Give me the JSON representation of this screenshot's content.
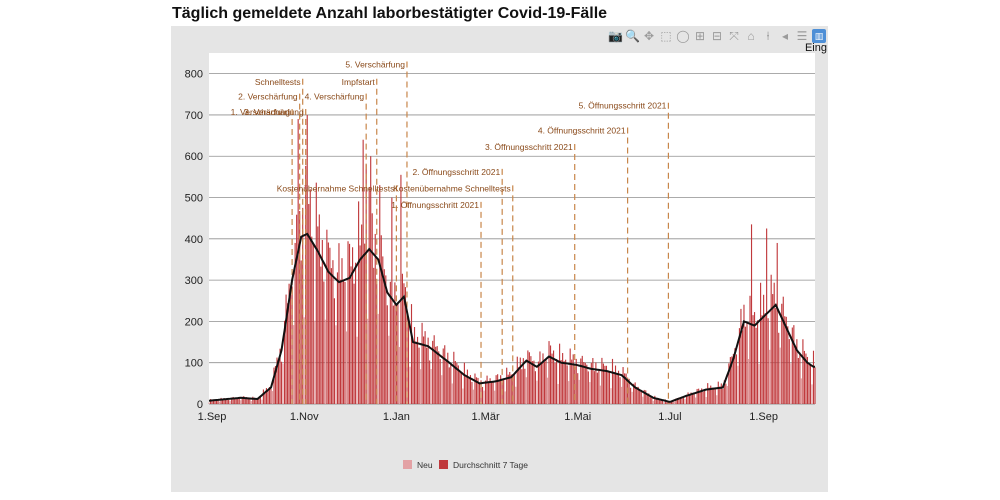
{
  "title": "Täglich gemeldete Anzahl laborbestätigter Covid-19-Fälle",
  "modebar": {
    "icons": [
      "camera-icon",
      "zoom-icon",
      "pan-icon",
      "box-select-icon",
      "lasso-icon",
      "zoom-in-icon",
      "zoom-out-icon",
      "autoscale-icon",
      "home-icon",
      "spike-lines-icon",
      "hover-closest-icon",
      "hover-compare-icon",
      "chart-icon"
    ],
    "overflow_label": "Eing"
  },
  "chart_data": {
    "type": "bar",
    "title": "Täglich gemeldete Anzahl laborbestätigter Covid-19-Fälle",
    "xlabel": "",
    "ylabel": "",
    "ylim": [
      0,
      850
    ],
    "yticks": [
      0,
      100,
      200,
      300,
      400,
      500,
      600,
      700,
      800
    ],
    "x_range": [
      "2020-08-30",
      "2021-10-05"
    ],
    "xticks": [
      {
        "date": "2020-09-01",
        "label": "1.Sep"
      },
      {
        "date": "2020-11-01",
        "label": "1.Nov"
      },
      {
        "date": "2021-01-01",
        "label": "1.Jan"
      },
      {
        "date": "2021-03-01",
        "label": "1.Mär"
      },
      {
        "date": "2021-05-01",
        "label": "1.Mai"
      },
      {
        "date": "2021-07-01",
        "label": "1.Jul"
      },
      {
        "date": "2021-09-01",
        "label": "1.Sep"
      }
    ],
    "grid": true,
    "legend_position": "bottom-center",
    "colors": {
      "bars": "#c0393c",
      "bars_light": "#e3a1a4",
      "line": "#111111",
      "vline": "#c8864a",
      "annotation": "#8a4a1a"
    },
    "series": [
      {
        "name": "Neu",
        "kind": "bar"
      },
      {
        "name": "Durchschnitt 7 Tage",
        "kind": "line"
      }
    ],
    "trend_anchors": [
      {
        "date": "2020-08-30",
        "value": 8
      },
      {
        "date": "2020-09-20",
        "value": 15
      },
      {
        "date": "2020-10-01",
        "value": 12
      },
      {
        "date": "2020-10-10",
        "value": 40
      },
      {
        "date": "2020-10-17",
        "value": 130
      },
      {
        "date": "2020-10-24",
        "value": 300
      },
      {
        "date": "2020-10-30",
        "value": 405
      },
      {
        "date": "2020-11-03",
        "value": 412
      },
      {
        "date": "2020-11-10",
        "value": 370
      },
      {
        "date": "2020-11-17",
        "value": 320
      },
      {
        "date": "2020-11-24",
        "value": 295
      },
      {
        "date": "2020-12-01",
        "value": 305
      },
      {
        "date": "2020-12-08",
        "value": 350
      },
      {
        "date": "2020-12-14",
        "value": 375
      },
      {
        "date": "2020-12-20",
        "value": 350
      },
      {
        "date": "2020-12-26",
        "value": 270
      },
      {
        "date": "2021-01-01",
        "value": 240
      },
      {
        "date": "2021-01-06",
        "value": 260
      },
      {
        "date": "2021-01-12",
        "value": 150
      },
      {
        "date": "2021-01-22",
        "value": 140
      },
      {
        "date": "2021-02-05",
        "value": 100
      },
      {
        "date": "2021-02-15",
        "value": 70
      },
      {
        "date": "2021-02-25",
        "value": 50
      },
      {
        "date": "2021-03-08",
        "value": 55
      },
      {
        "date": "2021-03-18",
        "value": 65
      },
      {
        "date": "2021-03-28",
        "value": 105
      },
      {
        "date": "2021-04-04",
        "value": 90
      },
      {
        "date": "2021-04-12",
        "value": 115
      },
      {
        "date": "2021-04-20",
        "value": 100
      },
      {
        "date": "2021-04-30",
        "value": 95
      },
      {
        "date": "2021-05-10",
        "value": 85
      },
      {
        "date": "2021-05-20",
        "value": 80
      },
      {
        "date": "2021-05-30",
        "value": 70
      },
      {
        "date": "2021-06-08",
        "value": 40
      },
      {
        "date": "2021-06-20",
        "value": 15
      },
      {
        "date": "2021-07-01",
        "value": 5
      },
      {
        "date": "2021-07-12",
        "value": 20
      },
      {
        "date": "2021-07-25",
        "value": 35
      },
      {
        "date": "2021-08-05",
        "value": 40
      },
      {
        "date": "2021-08-12",
        "value": 110
      },
      {
        "date": "2021-08-19",
        "value": 200
      },
      {
        "date": "2021-08-26",
        "value": 190
      },
      {
        "date": "2021-09-02",
        "value": 215
      },
      {
        "date": "2021-09-09",
        "value": 240
      },
      {
        "date": "2021-09-16",
        "value": 185
      },
      {
        "date": "2021-09-23",
        "value": 130
      },
      {
        "date": "2021-09-30",
        "value": 100
      },
      {
        "date": "2021-10-04",
        "value": 90
      }
    ],
    "bar_peaks": [
      {
        "date": "2020-10-26",
        "value": 390
      },
      {
        "date": "2020-10-28",
        "value": 690
      },
      {
        "date": "2020-10-31",
        "value": 475
      },
      {
        "date": "2020-11-03",
        "value": 700
      },
      {
        "date": "2020-11-05",
        "value": 520
      },
      {
        "date": "2020-11-10",
        "value": 430
      },
      {
        "date": "2020-12-10",
        "value": 640
      },
      {
        "date": "2020-12-12",
        "value": 580
      },
      {
        "date": "2020-12-15",
        "value": 600
      },
      {
        "date": "2020-12-21",
        "value": 530
      },
      {
        "date": "2020-12-29",
        "value": 500
      },
      {
        "date": "2021-01-04",
        "value": 555
      },
      {
        "date": "2021-08-24",
        "value": 435
      },
      {
        "date": "2021-09-03",
        "value": 425
      },
      {
        "date": "2021-09-10",
        "value": 390
      }
    ],
    "vlines": [
      {
        "date": "2020-10-24",
        "label": "1. Verschärfung",
        "y": 700
      },
      {
        "date": "2020-10-29",
        "label": "2. Verschärfung",
        "y": 737
      },
      {
        "date": "2020-10-31",
        "label": "Schnelltests",
        "y": 773
      },
      {
        "date": "2020-11-02",
        "label": "3. Verschärfung",
        "y": 700
      },
      {
        "date": "2020-12-12",
        "label": "4. Verschärfung",
        "y": 737
      },
      {
        "date": "2020-12-19",
        "label": "Impfstart",
        "y": 773
      },
      {
        "date": "2021-01-01",
        "label": "Kostenübernahme Schnelltests",
        "y": 515
      },
      {
        "date": "2021-01-08",
        "label": "5. Verschärfung",
        "y": 815
      },
      {
        "date": "2021-02-26",
        "label": "1. Öffnungsschritt 2021",
        "y": 475
      },
      {
        "date": "2021-03-12",
        "label": "2. Öffnungsschritt 2021",
        "y": 555
      },
      {
        "date": "2021-03-19",
        "label": "Kostenübernahme Schnelltests",
        "y": 515
      },
      {
        "date": "2021-04-29",
        "label": "3. Öffnungsschritt 2021",
        "y": 615
      },
      {
        "date": "2021-06-03",
        "label": "4. Öffnungsschritt 2021",
        "y": 655
      },
      {
        "date": "2021-06-30",
        "label": "5. Öffnungsschritt 2021",
        "y": 715
      }
    ],
    "legend_entries": [
      "Neu",
      "Durchschnitt 7 Tage"
    ]
  }
}
